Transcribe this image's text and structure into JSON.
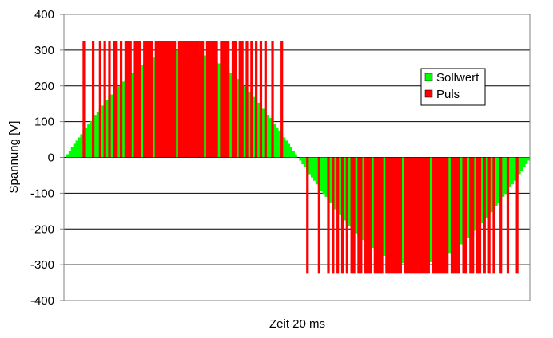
{
  "chart_data": {
    "type": "bar",
    "x_label": "Zeit 20 ms",
    "y_label": "Spannung [V]",
    "ylim": [
      -400,
      400
    ],
    "yticks": [
      -400,
      -300,
      -200,
      -100,
      0,
      100,
      200,
      300,
      400
    ],
    "grid": true,
    "legend": "upper right",
    "categories": [
      null,
      null,
      null,
      null,
      null,
      null,
      null,
      null,
      null,
      null,
      null,
      null,
      null,
      null,
      null,
      null,
      null,
      null,
      null,
      null,
      null,
      null,
      null,
      null,
      null,
      null,
      null,
      null,
      null,
      null,
      null,
      null,
      null,
      null,
      null,
      null,
      null,
      null,
      null,
      null,
      null,
      null,
      null,
      null,
      null,
      null,
      null,
      null,
      null,
      null,
      null,
      null,
      null,
      null,
      null,
      null,
      null,
      null,
      null,
      null,
      null,
      null,
      null,
      null,
      null,
      null,
      null,
      null,
      null,
      null,
      null,
      null,
      null,
      null,
      null,
      null,
      null,
      null,
      null,
      null,
      null,
      null,
      null,
      null,
      null,
      null,
      null,
      null,
      null,
      null,
      null,
      null,
      null,
      null,
      null,
      null,
      null,
      null,
      null,
      null,
      null,
      null,
      null,
      null,
      null,
      null,
      null,
      null,
      null,
      null,
      null,
      null,
      null,
      null,
      null,
      null,
      null,
      null,
      null,
      null,
      null,
      null,
      null,
      null,
      null,
      null,
      null,
      null,
      null,
      null,
      null,
      null,
      null,
      null,
      null,
      null,
      null,
      null,
      null,
      null,
      null,
      null,
      null,
      null,
      null,
      null,
      null,
      null,
      null,
      null,
      null,
      null,
      null,
      null,
      null,
      null,
      null,
      null,
      null,
      null,
      null,
      null,
      null,
      null,
      null,
      null,
      null,
      null,
      null,
      null,
      null,
      null,
      null,
      null,
      null,
      null,
      null,
      null,
      null,
      null,
      null,
      null,
      null,
      null,
      null,
      null,
      null,
      null,
      null,
      null,
      null,
      null,
      null,
      null,
      null,
      null,
      null,
      null,
      null,
      null
    ],
    "series": [
      {
        "name": "Sollwert",
        "color": "#00ff00",
        "values": [
          0,
          9,
          19,
          28,
          38,
          47,
          56,
          65,
          75,
          84,
          93,
          102,
          110,
          119,
          128,
          136,
          145,
          153,
          161,
          169,
          176,
          184,
          191,
          198,
          205,
          212,
          219,
          225,
          231,
          237,
          243,
          248,
          253,
          258,
          263,
          267,
          271,
          275,
          279,
          282,
          285,
          288,
          291,
          293,
          295,
          296,
          298,
          299,
          299,
          300,
          300,
          300,
          299,
          299,
          298,
          296,
          295,
          293,
          291,
          288,
          285,
          282,
          279,
          275,
          271,
          267,
          263,
          258,
          253,
          248,
          243,
          237,
          231,
          225,
          219,
          212,
          205,
          198,
          191,
          184,
          176,
          169,
          161,
          153,
          145,
          136,
          128,
          119,
          110,
          102,
          93,
          84,
          75,
          65,
          56,
          47,
          38,
          28,
          19,
          9,
          0,
          -9,
          -19,
          -28,
          -38,
          -47,
          -56,
          -65,
          -75,
          -84,
          -93,
          -102,
          -110,
          -119,
          -128,
          -136,
          -145,
          -153,
          -161,
          -169,
          -176,
          -184,
          -191,
          -198,
          -205,
          -212,
          -219,
          -225,
          -231,
          -237,
          -243,
          -248,
          -253,
          -258,
          -263,
          -267,
          -271,
          -275,
          -279,
          -282,
          -285,
          -288,
          -291,
          -293,
          -295,
          -296,
          -298,
          -299,
          -299,
          -300,
          -300,
          -300,
          -299,
          -299,
          -298,
          -296,
          -295,
          -293,
          -291,
          -288,
          -285,
          -282,
          -279,
          -275,
          -271,
          -267,
          -263,
          -258,
          -253,
          -248,
          -243,
          -237,
          -231,
          -225,
          -219,
          -212,
          -205,
          -198,
          -191,
          -184,
          -176,
          -169,
          -161,
          -153,
          -145,
          -136,
          -128,
          -119,
          -110,
          -102,
          -93,
          -84,
          -75,
          -65,
          -56,
          -47,
          -38,
          -28,
          -19,
          -9
        ]
      },
      {
        "name": "Puls",
        "color": "#ff0000",
        "values": [
          0,
          0,
          0,
          0,
          0,
          0,
          0,
          0,
          325,
          0,
          0,
          0,
          325,
          0,
          0,
          325,
          0,
          325,
          0,
          325,
          0,
          325,
          325,
          0,
          325,
          0,
          325,
          325,
          325,
          0,
          325,
          325,
          325,
          0,
          325,
          325,
          325,
          325,
          0,
          325,
          325,
          325,
          325,
          325,
          325,
          325,
          325,
          325,
          0,
          325,
          325,
          325,
          325,
          325,
          325,
          325,
          325,
          325,
          325,
          325,
          0,
          325,
          325,
          325,
          325,
          325,
          0,
          325,
          325,
          325,
          325,
          0,
          325,
          325,
          0,
          325,
          325,
          0,
          325,
          0,
          325,
          0,
          325,
          0,
          325,
          0,
          325,
          0,
          0,
          325,
          0,
          0,
          0,
          325,
          0,
          0,
          0,
          0,
          0,
          0,
          0,
          0,
          0,
          0,
          -325,
          0,
          0,
          0,
          0,
          -325,
          0,
          0,
          0,
          -325,
          0,
          -325,
          0,
          -325,
          0,
          -325,
          0,
          -325,
          0,
          -325,
          -325,
          0,
          -325,
          -325,
          0,
          -325,
          -325,
          -325,
          0,
          -325,
          -325,
          -325,
          -325,
          0,
          -325,
          -325,
          -325,
          -325,
          -325,
          -325,
          -325,
          0,
          -325,
          -325,
          -325,
          -325,
          -325,
          -325,
          -325,
          -325,
          -325,
          -325,
          -325,
          0,
          -325,
          -325,
          -325,
          -325,
          -325,
          -325,
          -325,
          0,
          -325,
          -325,
          -325,
          -325,
          0,
          -325,
          -325,
          0,
          -325,
          -325,
          0,
          -325,
          -325,
          0,
          -325,
          0,
          -325,
          0,
          -325,
          0,
          0,
          -325,
          0,
          0,
          -325,
          0,
          0,
          0,
          -325,
          0,
          0,
          0,
          0,
          0
        ]
      }
    ]
  }
}
